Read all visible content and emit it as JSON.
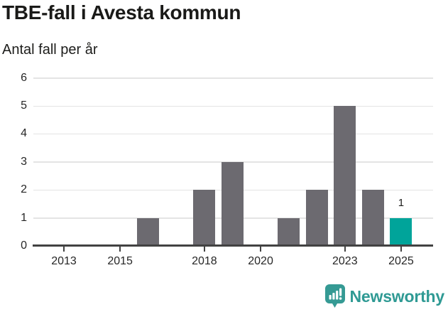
{
  "chart_data": {
    "type": "bar",
    "title": "TBE-fall i Avesta kommun",
    "subtitle": "Antal fall per år",
    "categories": [
      2012,
      2013,
      2014,
      2015,
      2016,
      2017,
      2018,
      2019,
      2020,
      2021,
      2022,
      2023,
      2024,
      2025
    ],
    "values": [
      0,
      0,
      0,
      0,
      1,
      0,
      2,
      3,
      0,
      1,
      2,
      5,
      2,
      1
    ],
    "highlight_category": 2025,
    "highlight_value_label": "1",
    "xticks": [
      2013,
      2015,
      2018,
      2020,
      2023,
      2025
    ],
    "yticks": [
      0,
      1,
      2,
      3,
      4,
      5,
      6
    ],
    "ylim": [
      0,
      6
    ],
    "grid": "horizontal",
    "legend": "none",
    "colors": {
      "bar": "#6c6a70",
      "highlight": "#00a49a",
      "gridline": "#e4e4e4",
      "axis": "#424242",
      "text": "#262626"
    }
  },
  "footer": {
    "brand": "Newsworthy",
    "logo_icon": "bar-chart-speech-bubble-icon",
    "brand_text_color": "#2f9a94",
    "brand_icon_color": "#359a94"
  }
}
